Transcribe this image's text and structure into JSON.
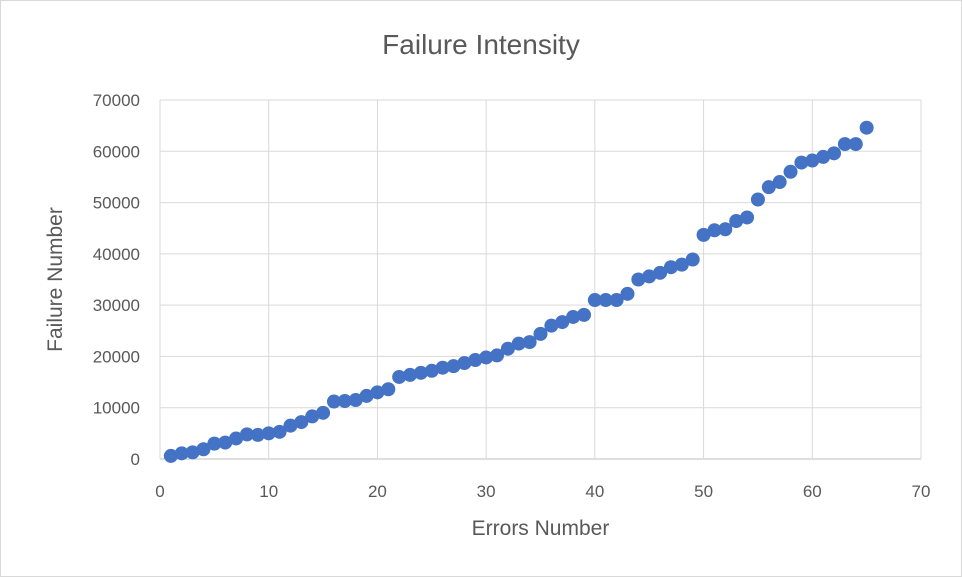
{
  "chart_data": {
    "type": "scatter",
    "title": "Failure Intensity",
    "xlabel": "Errors Number",
    "ylabel": "Failure Number",
    "xlim": [
      0,
      70
    ],
    "ylim": [
      0,
      70000
    ],
    "x_ticks": [
      0,
      10,
      20,
      30,
      40,
      50,
      60,
      70
    ],
    "y_ticks": [
      0,
      10000,
      20000,
      30000,
      40000,
      50000,
      60000,
      70000
    ],
    "grid": true,
    "legend": "none",
    "marker_color": "#4472c4",
    "series": [
      {
        "x": [
          1,
          2,
          3,
          4,
          5,
          6,
          7,
          8,
          9,
          10,
          11,
          12,
          13,
          14,
          15,
          16,
          17,
          18,
          19,
          20,
          21,
          22,
          23,
          24,
          25,
          26,
          27,
          28,
          29,
          30,
          31,
          32,
          33,
          34,
          35,
          36,
          37,
          38,
          39,
          40,
          41,
          42,
          43,
          44,
          45,
          46,
          47,
          48,
          49,
          50,
          51,
          52,
          53,
          54,
          55,
          56,
          57,
          58,
          59,
          60,
          61,
          62,
          63,
          64,
          65
        ],
        "y": [
          600,
          1100,
          1300,
          1900,
          3000,
          3200,
          4000,
          4800,
          4700,
          5000,
          5300,
          6500,
          7200,
          8300,
          9000,
          11200,
          11300,
          11500,
          12300,
          13000,
          13600,
          16000,
          16400,
          16800,
          17200,
          17800,
          18100,
          18700,
          19300,
          19800,
          20200,
          21500,
          22500,
          22800,
          24400,
          26000,
          26700,
          27700,
          28100,
          31000,
          31000,
          31000,
          32200,
          35000,
          35600,
          36300,
          37400,
          37900,
          38900,
          43700,
          44600,
          44800,
          46400,
          47100,
          50600,
          53000,
          54000,
          56000,
          57800,
          58200,
          58900,
          59600,
          61400,
          61400,
          64600
        ]
      }
    ]
  }
}
